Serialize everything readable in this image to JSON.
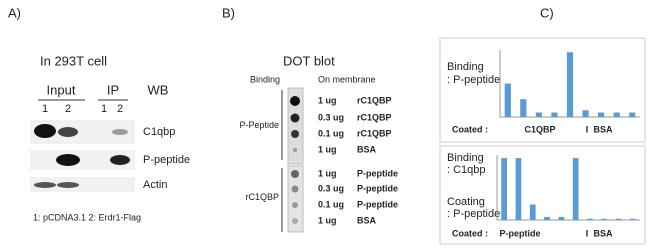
{
  "panel_a": {
    "label": "A)",
    "cell_line": "In 293T cell",
    "headers": [
      "Input",
      "IP",
      "WB"
    ],
    "lanes": [
      "1",
      "2",
      "1",
      "2"
    ],
    "rows": [
      "C1qbp",
      "P-peptide",
      "Actin"
    ],
    "footnote": "1: pCDNA3.1  2: Erdr1-Flag"
  },
  "panel_b": {
    "label": "B)",
    "title": "DOT blot",
    "headers": [
      "Binding",
      "On membrane"
    ],
    "groups": [
      {
        "name": "P-Peptide",
        "rows": [
          [
            "1 ug",
            "rC1QBP"
          ],
          [
            "0.3 ug",
            "rC1QBP"
          ],
          [
            "0.1 ug",
            "rC1QBP"
          ],
          [
            "1 ug",
            "BSA"
          ]
        ]
      },
      {
        "name": "rC1QBP",
        "rows": [
          [
            "1 ug",
            "P-peptide"
          ],
          [
            "0.3 ug",
            "P-peptide"
          ],
          [
            "0.1 ug",
            "P-peptide"
          ],
          [
            "1 ug",
            "BSA"
          ]
        ]
      }
    ]
  },
  "panel_c": {
    "label": "C)",
    "charts": [
      {
        "type": "bar",
        "title": [
          "Binding",
          ": P-peptide"
        ],
        "coated_label": "Coated :",
        "groups": [
          "C1QBP",
          "I",
          "BSA"
        ],
        "color": "#5b9bd5",
        "ylim": [
          0,
          1.5
        ],
        "values": [
          0.75,
          0.4,
          0.1,
          0.1,
          1.45,
          0.15,
          0.1,
          0.1,
          0.1
        ]
      },
      {
        "type": "bar",
        "title": [
          "Binding",
          ": C1qbp",
          "Coating",
          ": P-peptide"
        ],
        "coated_label": "Coated :",
        "groups": [
          "P-peptide",
          "I",
          "BSA"
        ],
        "color": "#5b9bd5",
        "ylim": [
          0,
          1.05
        ],
        "values": [
          1.0,
          1.0,
          0.25,
          0.05,
          0.05,
          1.0,
          0.02,
          0.02,
          0.02,
          0.02
        ]
      }
    ]
  }
}
